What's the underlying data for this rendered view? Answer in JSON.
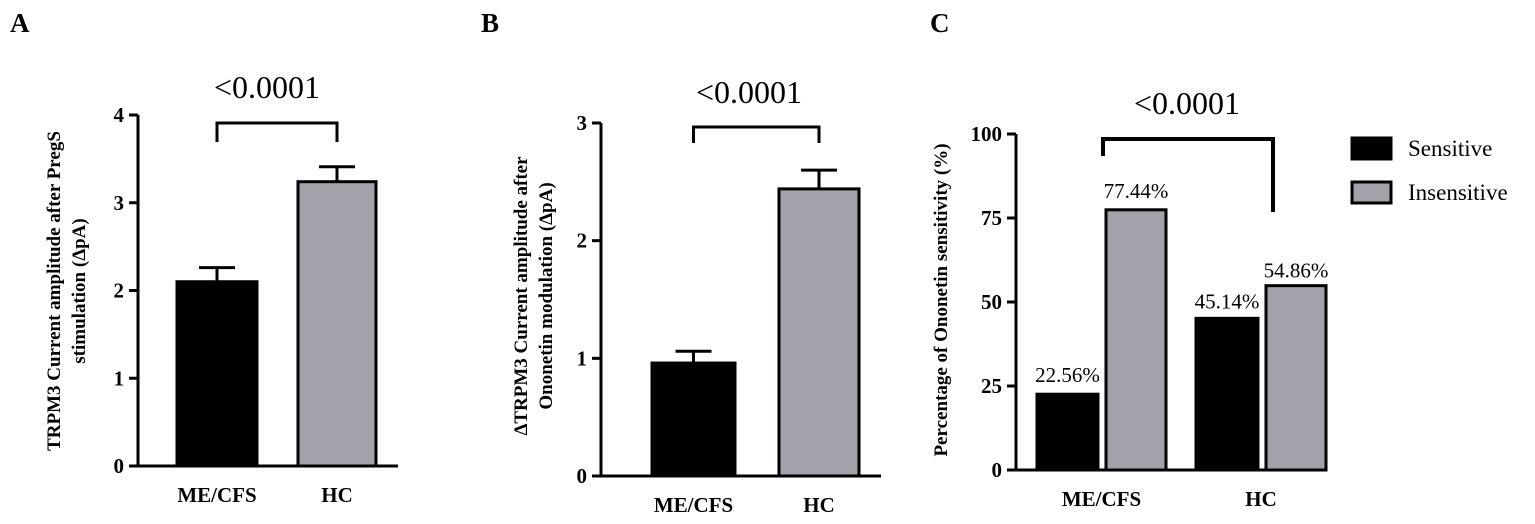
{
  "chart_data": [
    {
      "panel": "A",
      "type": "bar",
      "categories": [
        "ME/CFS",
        "HC"
      ],
      "values": [
        2.1,
        3.24
      ],
      "errors": [
        0.16,
        0.17
      ],
      "colors": [
        "#000000",
        "#a2a2aa"
      ],
      "ylabel": "TRPM3 Current amplitude after PregS stimulation (ΔpA)",
      "ylim": [
        0,
        4
      ],
      "yticks": [
        "0",
        "1",
        "2",
        "3",
        "4"
      ],
      "significance": "<0.0001"
    },
    {
      "panel": "B",
      "type": "bar",
      "categories": [
        "ME/CFS",
        "HC"
      ],
      "values": [
        0.96,
        2.44
      ],
      "errors": [
        0.1,
        0.16
      ],
      "colors": [
        "#000000",
        "#a2a2aa"
      ],
      "ylabel": "ΔTRPM3 Current amplitude after Ononetin modulation (ΔpA)",
      "ylim": [
        0,
        3
      ],
      "yticks": [
        "0",
        "1",
        "2",
        "3"
      ],
      "significance": "<0.0001"
    },
    {
      "panel": "C",
      "type": "bar",
      "categories": [
        "ME/CFS",
        "HC"
      ],
      "series": [
        {
          "name": "Sensitive",
          "values": [
            22.56,
            45.14
          ],
          "labels": [
            "22.56%",
            "45.14%"
          ],
          "color": "#000000"
        },
        {
          "name": "Insensitive",
          "values": [
            77.44,
            54.86
          ],
          "labels": [
            "77.44%",
            "54.86%"
          ],
          "color": "#a2a2aa"
        }
      ],
      "ylabel": "Percentage of Ononetin sensitivity (%)",
      "ylim": [
        0,
        100
      ],
      "yticks": [
        "0",
        "25",
        "50",
        "75",
        "100"
      ],
      "significance": "<0.0001",
      "legend": "right"
    }
  ]
}
